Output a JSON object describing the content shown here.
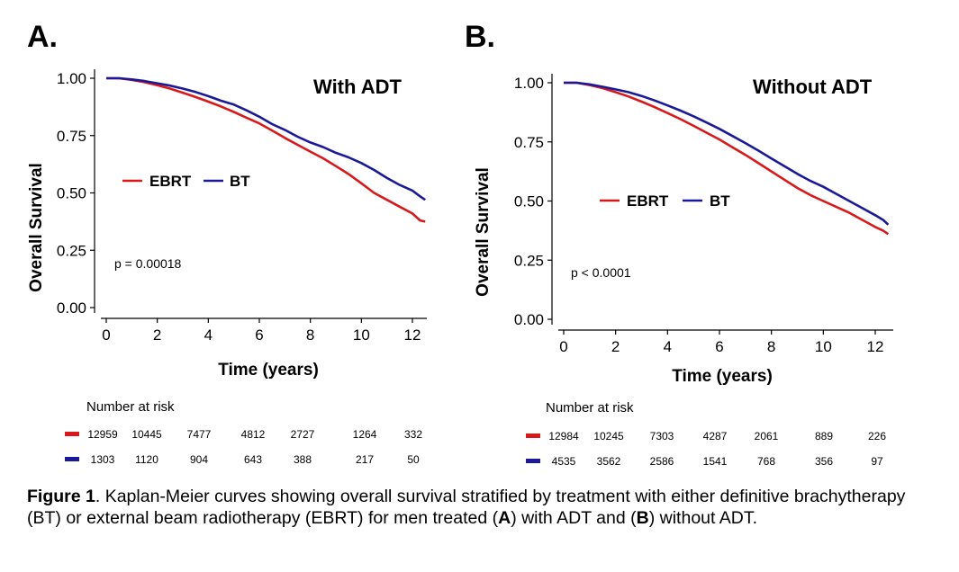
{
  "panels": [
    {
      "letter": "A.",
      "title": "With ADT",
      "p_value": "p = 0.00018",
      "risk_title": "Number at risk",
      "risk_ebrt": [
        "12959",
        "10445",
        "7477",
        "4812",
        "2727",
        "1264",
        "332"
      ],
      "risk_bt": [
        "1303",
        "1120",
        "904",
        "643",
        "388",
        "217",
        "50"
      ]
    },
    {
      "letter": "B.",
      "title": "Without ADT",
      "p_value": "p < 0.0001",
      "risk_title": "Number at risk",
      "risk_ebrt": [
        "12984",
        "10245",
        "7303",
        "4287",
        "2061",
        "889",
        "226"
      ],
      "risk_bt": [
        "4535",
        "3562",
        "2586",
        "1541",
        "768",
        "356",
        "97"
      ]
    }
  ],
  "caption": {
    "label": "Figure 1",
    "text": ". Kaplan-Meier curves showing overall survival stratified by treatment with either definitive brachytherapy (BT) or external beam radiotherapy (EBRT) for men treated (",
    "a": "A",
    "mid": ") with ADT and (",
    "b": "B",
    "end": ") without ADT."
  },
  "chart_data": [
    {
      "type": "line",
      "title": "With ADT",
      "xlabel": "Time (years)",
      "ylabel": "Overall Survival",
      "xlim": [
        0,
        12.5
      ],
      "ylim": [
        0,
        1
      ],
      "x_ticks": [
        "0",
        "2",
        "4",
        "6",
        "8",
        "10",
        "12"
      ],
      "y_ticks": [
        "0.00",
        "0.25",
        "0.50",
        "0.75",
        "1.00"
      ],
      "legend": "left-middle",
      "colors": {
        "EBRT": "#d7191c",
        "BT": "#1a1a99"
      },
      "series": [
        {
          "name": "EBRT",
          "x": [
            0,
            0.5,
            1,
            1.5,
            2,
            2.5,
            3,
            3.5,
            4,
            4.5,
            5,
            5.5,
            6,
            6.5,
            7,
            7.5,
            8,
            8.5,
            9,
            9.5,
            10,
            10.5,
            11,
            11.5,
            12,
            12.3,
            12.5
          ],
          "y": [
            1.0,
            1.0,
            0.993,
            0.983,
            0.97,
            0.955,
            0.937,
            0.918,
            0.898,
            0.877,
            0.853,
            0.828,
            0.803,
            0.772,
            0.74,
            0.71,
            0.68,
            0.651,
            0.617,
            0.582,
            0.542,
            0.5,
            0.47,
            0.44,
            0.41,
            0.38,
            0.375
          ]
        },
        {
          "name": "BT",
          "x": [
            0,
            0.5,
            1,
            1.5,
            2,
            2.5,
            3,
            3.5,
            4,
            4.5,
            5,
            5.5,
            6,
            6.5,
            7,
            7.5,
            8,
            8.5,
            9,
            9.5,
            10,
            10.5,
            11,
            11.5,
            12,
            12.3,
            12.5
          ],
          "y": [
            1.0,
            1.0,
            0.995,
            0.988,
            0.978,
            0.968,
            0.955,
            0.94,
            0.922,
            0.902,
            0.885,
            0.86,
            0.832,
            0.8,
            0.775,
            0.745,
            0.72,
            0.7,
            0.675,
            0.655,
            0.63,
            0.6,
            0.565,
            0.535,
            0.51,
            0.485,
            0.47
          ]
        }
      ]
    },
    {
      "type": "line",
      "title": "Without ADT",
      "xlabel": "Time (years)",
      "ylabel": "Overall Survival",
      "xlim": [
        0,
        12.5
      ],
      "ylim": [
        0,
        1
      ],
      "x_ticks": [
        "0",
        "2",
        "4",
        "6",
        "8",
        "10",
        "12"
      ],
      "y_ticks": [
        "0.00",
        "0.25",
        "0.50",
        "0.75",
        "1.00"
      ],
      "legend": "left-middle",
      "colors": {
        "EBRT": "#d7191c",
        "BT": "#1a1a99"
      },
      "series": [
        {
          "name": "EBRT",
          "x": [
            0,
            0.5,
            1,
            1.5,
            2,
            2.5,
            3,
            3.5,
            4,
            4.5,
            5,
            5.5,
            6,
            6.5,
            7,
            7.5,
            8,
            8.5,
            9,
            9.5,
            10,
            10.5,
            11,
            11.5,
            12,
            12.3,
            12.5
          ],
          "y": [
            1.0,
            1.0,
            0.99,
            0.977,
            0.96,
            0.942,
            0.92,
            0.897,
            0.872,
            0.846,
            0.818,
            0.789,
            0.76,
            0.727,
            0.695,
            0.66,
            0.625,
            0.59,
            0.555,
            0.525,
            0.5,
            0.475,
            0.45,
            0.42,
            0.39,
            0.375,
            0.36
          ]
        },
        {
          "name": "BT",
          "x": [
            0,
            0.5,
            1,
            1.5,
            2,
            2.5,
            3,
            3.5,
            4,
            4.5,
            5,
            5.5,
            6,
            6.5,
            7,
            7.5,
            8,
            8.5,
            9,
            9.5,
            10,
            10.5,
            11,
            11.5,
            12,
            12.3,
            12.5
          ],
          "y": [
            1.0,
            1.0,
            0.993,
            0.983,
            0.972,
            0.96,
            0.944,
            0.925,
            0.904,
            0.882,
            0.858,
            0.832,
            0.805,
            0.775,
            0.745,
            0.713,
            0.68,
            0.647,
            0.615,
            0.585,
            0.56,
            0.53,
            0.5,
            0.47,
            0.44,
            0.42,
            0.4
          ]
        }
      ]
    }
  ]
}
